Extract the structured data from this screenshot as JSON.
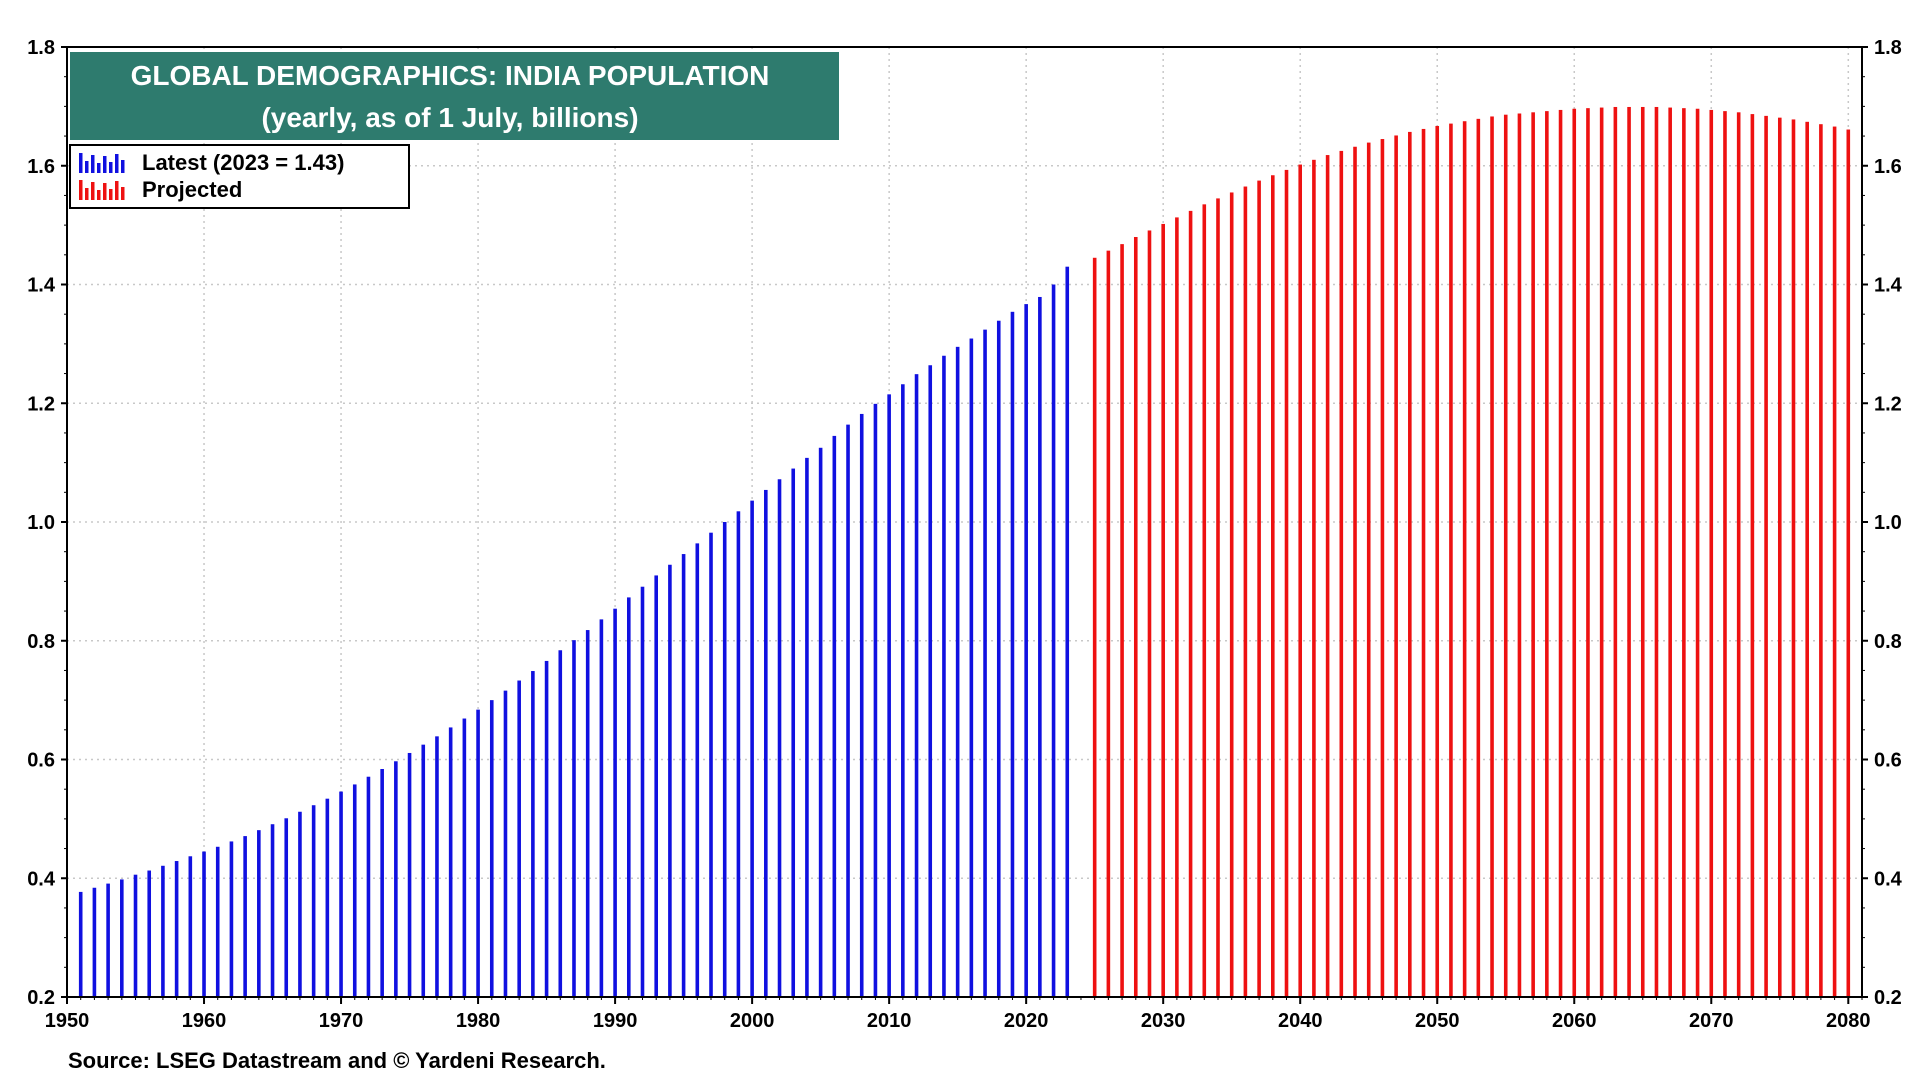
{
  "chart_data": {
    "type": "bar",
    "title": "GLOBAL DEMOGRAPHICS: INDIA POPULATION",
    "subtitle": "(yearly, as of 1 July, billions)",
    "source": "Source: LSEG Datastream and © Yardeni Research.",
    "xlim": [
      1950,
      2081
    ],
    "ylim": [
      0.2,
      1.8
    ],
    "x_ticks": [
      "1950",
      "1960",
      "1970",
      "1980",
      "1990",
      "2000",
      "2010",
      "2020",
      "2030",
      "2040",
      "2050",
      "2060",
      "2070",
      "2080"
    ],
    "y_ticks": [
      "0.2",
      "0.4",
      "0.6",
      "0.8",
      "1.0",
      "1.2",
      "1.4",
      "1.6",
      "1.8"
    ],
    "grid": true,
    "legend_position": "top-left",
    "colors": {
      "latest": "#1010e0",
      "projected": "#ee1111",
      "title_bg": "#2e7b6e",
      "grid": "#c8c8c8"
    },
    "series": [
      {
        "name": "Latest (2023 = 1.43)",
        "color": "#1010e0",
        "x": [
          1951,
          1952,
          1953,
          1954,
          1955,
          1956,
          1957,
          1958,
          1959,
          1960,
          1961,
          1962,
          1963,
          1964,
          1965,
          1966,
          1967,
          1968,
          1969,
          1970,
          1971,
          1972,
          1973,
          1974,
          1975,
          1976,
          1977,
          1978,
          1979,
          1980,
          1981,
          1982,
          1983,
          1984,
          1985,
          1986,
          1987,
          1988,
          1989,
          1990,
          1991,
          1992,
          1993,
          1994,
          1995,
          1996,
          1997,
          1998,
          1999,
          2000,
          2001,
          2002,
          2003,
          2004,
          2005,
          2006,
          2007,
          2008,
          2009,
          2010,
          2011,
          2012,
          2013,
          2014,
          2015,
          2016,
          2017,
          2018,
          2019,
          2020,
          2021,
          2022,
          2023
        ],
        "values": [
          0.377,
          0.384,
          0.391,
          0.398,
          0.406,
          0.413,
          0.421,
          0.429,
          0.437,
          0.445,
          0.453,
          0.462,
          0.471,
          0.481,
          0.491,
          0.501,
          0.512,
          0.523,
          0.534,
          0.546,
          0.558,
          0.571,
          0.584,
          0.597,
          0.611,
          0.625,
          0.639,
          0.654,
          0.669,
          0.684,
          0.7,
          0.716,
          0.733,
          0.749,
          0.766,
          0.784,
          0.801,
          0.818,
          0.836,
          0.854,
          0.873,
          0.891,
          0.91,
          0.928,
          0.946,
          0.964,
          0.982,
          1.0,
          1.018,
          1.036,
          1.054,
          1.072,
          1.09,
          1.108,
          1.125,
          1.145,
          1.164,
          1.182,
          1.199,
          1.215,
          1.232,
          1.249,
          1.264,
          1.28,
          1.295,
          1.309,
          1.324,
          1.339,
          1.354,
          1.367,
          1.379,
          1.4,
          1.43
        ]
      },
      {
        "name": "Projected",
        "color": "#ee1111",
        "x": [
          2025,
          2026,
          2027,
          2028,
          2029,
          2030,
          2031,
          2032,
          2033,
          2034,
          2035,
          2036,
          2037,
          2038,
          2039,
          2040,
          2041,
          2042,
          2043,
          2044,
          2045,
          2046,
          2047,
          2048,
          2049,
          2050,
          2051,
          2052,
          2053,
          2054,
          2055,
          2056,
          2057,
          2058,
          2059,
          2060,
          2061,
          2062,
          2063,
          2064,
          2065,
          2066,
          2067,
          2068,
          2069,
          2070,
          2071,
          2072,
          2073,
          2074,
          2075,
          2076,
          2077,
          2078,
          2079,
          2080
        ],
        "values": [
          1.445,
          1.457,
          1.468,
          1.48,
          1.491,
          1.502,
          1.513,
          1.524,
          1.535,
          1.545,
          1.555,
          1.565,
          1.575,
          1.584,
          1.593,
          1.602,
          1.61,
          1.618,
          1.625,
          1.632,
          1.639,
          1.645,
          1.651,
          1.657,
          1.662,
          1.667,
          1.671,
          1.675,
          1.679,
          1.683,
          1.686,
          1.688,
          1.69,
          1.692,
          1.694,
          1.696,
          1.697,
          1.698,
          1.699,
          1.699,
          1.699,
          1.699,
          1.698,
          1.697,
          1.696,
          1.694,
          1.692,
          1.69,
          1.687,
          1.684,
          1.681,
          1.678,
          1.674,
          1.67,
          1.666,
          1.661
        ]
      }
    ]
  }
}
